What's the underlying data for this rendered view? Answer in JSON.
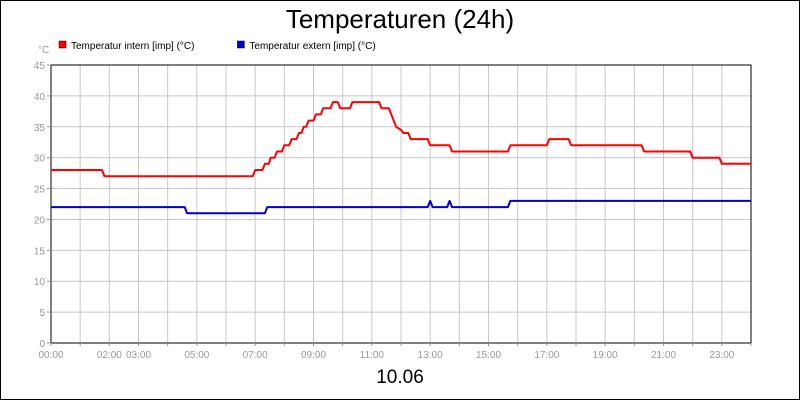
{
  "chart_data": {
    "type": "line",
    "title": "Temperaturen (24h)",
    "xlabel": "10.06",
    "ylabel": "°C",
    "ylim": [
      0,
      45
    ],
    "yticks": [
      0,
      5,
      10,
      15,
      20,
      25,
      30,
      35,
      40,
      45
    ],
    "x_tick_labels": [
      "00:00",
      "02:00",
      "03:00",
      "05:00",
      "07:00",
      "09:00",
      "11:00",
      "13:00",
      "15:00",
      "17:00",
      "19:00",
      "21:00",
      "23:00"
    ],
    "x_tick_hours": [
      0,
      2,
      3,
      5,
      7,
      9,
      11,
      13,
      15,
      17,
      19,
      21,
      23
    ],
    "grid": true,
    "legend_position": "top-left",
    "series": [
      {
        "name": "Temperatur intern [imp] (°C)",
        "color": "#ff0000",
        "points": [
          [
            "00:00",
            28
          ],
          [
            "01:45",
            28
          ],
          [
            "01:50",
            27
          ],
          [
            "06:55",
            27
          ],
          [
            "07:00",
            28
          ],
          [
            "07:15",
            28
          ],
          [
            "07:20",
            29
          ],
          [
            "07:28",
            29
          ],
          [
            "07:32",
            30
          ],
          [
            "07:40",
            30
          ],
          [
            "07:45",
            31
          ],
          [
            "07:55",
            31
          ],
          [
            "08:00",
            32
          ],
          [
            "08:10",
            32
          ],
          [
            "08:15",
            33
          ],
          [
            "08:25",
            33
          ],
          [
            "08:30",
            34
          ],
          [
            "08:35",
            34
          ],
          [
            "08:40",
            35
          ],
          [
            "08:45",
            35
          ],
          [
            "08:50",
            36
          ],
          [
            "09:00",
            36
          ],
          [
            "09:05",
            37
          ],
          [
            "09:15",
            37
          ],
          [
            "09:20",
            38
          ],
          [
            "09:35",
            38
          ],
          [
            "09:40",
            39
          ],
          [
            "09:50",
            39
          ],
          [
            "09:55",
            38
          ],
          [
            "10:15",
            38
          ],
          [
            "10:20",
            39
          ],
          [
            "11:15",
            39
          ],
          [
            "11:20",
            38
          ],
          [
            "11:35",
            38
          ],
          [
            "11:40",
            37
          ],
          [
            "11:45",
            36
          ],
          [
            "11:50",
            35
          ],
          [
            "12:00",
            34.5
          ],
          [
            "12:05",
            34
          ],
          [
            "12:15",
            34
          ],
          [
            "12:20",
            33
          ],
          [
            "12:55",
            33
          ],
          [
            "13:00",
            32
          ],
          [
            "13:40",
            32
          ],
          [
            "13:45",
            31
          ],
          [
            "15:40",
            31
          ],
          [
            "15:45",
            32
          ],
          [
            "17:00",
            32
          ],
          [
            "17:05",
            33
          ],
          [
            "17:45",
            33
          ],
          [
            "17:50",
            32
          ],
          [
            "20:15",
            32
          ],
          [
            "20:20",
            31
          ],
          [
            "21:55",
            31
          ],
          [
            "22:00",
            30
          ],
          [
            "22:55",
            30
          ],
          [
            "23:00",
            29
          ],
          [
            "24:00",
            29
          ]
        ]
      },
      {
        "name": "Temperatur extern [imp] (°C)",
        "color": "#0000cc",
        "points": [
          [
            "00:00",
            22
          ],
          [
            "04:35",
            22
          ],
          [
            "04:40",
            21
          ],
          [
            "07:20",
            21
          ],
          [
            "07:25",
            22
          ],
          [
            "12:55",
            22
          ],
          [
            "13:00",
            23
          ],
          [
            "13:05",
            22
          ],
          [
            "13:35",
            22
          ],
          [
            "13:40",
            23
          ],
          [
            "13:45",
            22
          ],
          [
            "15:40",
            22
          ],
          [
            "15:45",
            23
          ],
          [
            "24:00",
            23
          ]
        ]
      }
    ]
  }
}
